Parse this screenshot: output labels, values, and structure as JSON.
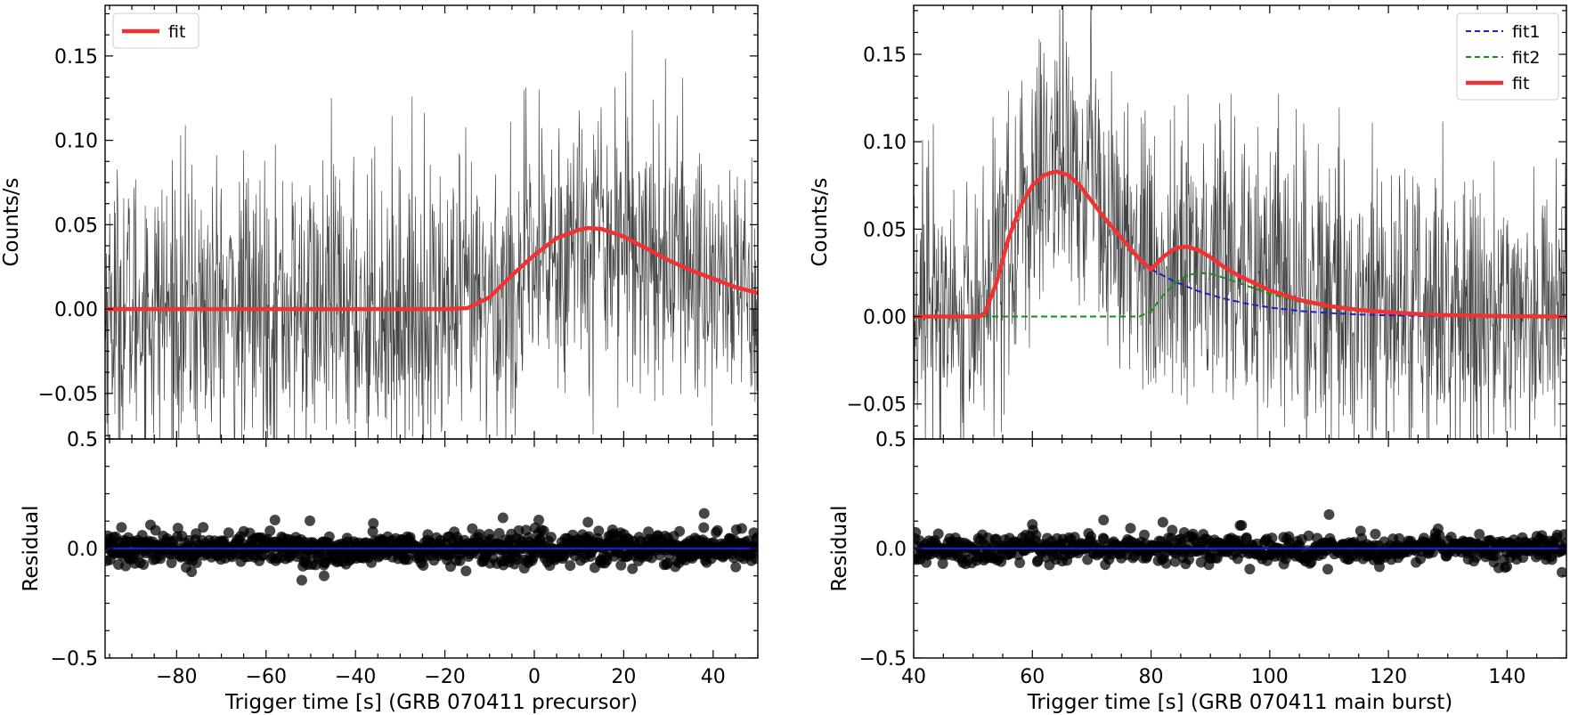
{
  "chart_data": [
    {
      "type": "line",
      "panel": "left-top",
      "title": "",
      "xlabel": "Trigger time [s] (GRB 070411 precursor)",
      "ylabel": "Counts/s",
      "xlim": [
        -96,
        50
      ],
      "ylim": [
        -0.077,
        0.18
      ],
      "xticks": [
        -80,
        -60,
        -40,
        -20,
        0,
        20,
        40
      ],
      "xtick_labels": [
        "−80",
        "−60",
        "−40",
        "−20",
        "0",
        "20",
        "40"
      ],
      "yticks": [
        -0.05,
        0.0,
        0.05,
        0.1,
        0.15
      ],
      "ytick_labels": [
        "−0.05",
        "0.00",
        "0.05",
        "0.10",
        "0.15"
      ],
      "grid": false,
      "legend": {
        "placement": "top-left",
        "entries": [
          {
            "label": "fit",
            "color": "#f03232",
            "style": "solid"
          }
        ]
      },
      "series": [
        {
          "name": "light curve",
          "kind": "noisy-data",
          "color": "#222222",
          "x_range": [
            -96,
            50
          ],
          "noise_std": 0.042,
          "envelope": {
            "x": [
              -96,
              -15,
              -5,
              5,
              12,
              20,
              30,
              40,
              50
            ],
            "y": [
              0,
              0,
              0.01,
              0.035,
              0.048,
              0.045,
              0.03,
              0.018,
              0.01
            ]
          }
        },
        {
          "name": "fit",
          "kind": "model",
          "color": "#f03232",
          "x": [
            -96,
            -20,
            -15,
            -10,
            -5,
            0,
            5,
            10,
            12,
            15,
            20,
            25,
            30,
            35,
            40,
            45,
            50
          ],
          "y": [
            0,
            0,
            0.0005,
            0.007,
            0.02,
            0.032,
            0.042,
            0.047,
            0.048,
            0.0475,
            0.043,
            0.036,
            0.029,
            0.023,
            0.018,
            0.013,
            0.0095
          ]
        }
      ]
    },
    {
      "type": "scatter",
      "panel": "left-bottom",
      "xlabel": "Trigger time [s] (GRB 070411 precursor)",
      "ylabel": "Residual",
      "xlim": [
        -96,
        50
      ],
      "ylim": [
        -0.5,
        0.5
      ],
      "yticks": [
        -0.5,
        0.0,
        0.5
      ],
      "ytick_labels": [
        "−0.5",
        "0.0",
        "0.5"
      ],
      "series": [
        {
          "name": "residual",
          "color": "#000000",
          "x_range": [
            -96,
            50
          ],
          "spread": 0.035,
          "count": 900
        },
        {
          "name": "zero line",
          "color": "#1f1fd0",
          "x": [
            -96,
            50
          ],
          "y": [
            0,
            0
          ]
        }
      ],
      "outliers": {
        "x": [
          38,
          -52,
          -47,
          -7,
          1,
          12,
          -58,
          -36
        ],
        "y": [
          0.16,
          -0.145,
          -0.125,
          0.14,
          0.13,
          0.12,
          0.13,
          0.115
        ]
      }
    },
    {
      "type": "line",
      "panel": "right-top",
      "title": "",
      "xlabel": "Trigger time [s] (GRB 070411 main burst)",
      "ylabel": "Counts/s",
      "xlim": [
        40,
        150
      ],
      "ylim": [
        -0.07,
        0.178
      ],
      "xticks": [
        40,
        60,
        80,
        100,
        120,
        140
      ],
      "xtick_labels": [
        "40",
        "60",
        "80",
        "100",
        "120",
        "140"
      ],
      "yticks": [
        -0.05,
        0.0,
        0.05,
        0.1,
        0.15
      ],
      "ytick_labels": [
        "−0.05",
        "0.00",
        "0.05",
        "0.10",
        "0.15"
      ],
      "grid": false,
      "legend": {
        "placement": "top-right",
        "entries": [
          {
            "label": "fit1",
            "color": "#1f1fd0",
            "style": "dashed"
          },
          {
            "label": "fit2",
            "color": "#1c8a1c",
            "style": "dashed"
          },
          {
            "label": "fit",
            "color": "#f03232",
            "style": "solid"
          }
        ]
      },
      "series": [
        {
          "name": "light curve",
          "kind": "noisy-data",
          "color": "#222222",
          "x_range": [
            40,
            150
          ],
          "noise_std": 0.04,
          "envelope": {
            "x": [
              40,
              50,
              55,
              60,
              64,
              70,
              75,
              80,
              85,
              90,
              100,
              110,
              120,
              150
            ],
            "y": [
              0,
              0,
              0.03,
              0.07,
              0.085,
              0.07,
              0.045,
              0.03,
              0.04,
              0.035,
              0.02,
              0.008,
              0.003,
              0
            ]
          }
        },
        {
          "name": "fit1",
          "kind": "model",
          "color": "#1f1fd0",
          "style": "dashed",
          "x": [
            80,
            84,
            88,
            92,
            96,
            100,
            105,
            110,
            115,
            120,
            125,
            130,
            140,
            150
          ],
          "y": [
            0.027,
            0.02,
            0.0145,
            0.0105,
            0.0075,
            0.0052,
            0.0032,
            0.002,
            0.0012,
            0.0007,
            0.0004,
            0.0002,
            0.0001,
            0.0
          ]
        },
        {
          "name": "fit2",
          "kind": "model",
          "color": "#1c8a1c",
          "style": "dashed",
          "x": [
            40,
            78,
            80,
            82,
            84,
            86,
            88,
            90,
            92,
            95,
            100,
            105,
            110,
            115,
            120,
            125,
            130,
            150
          ],
          "y": [
            0,
            0,
            0.003,
            0.012,
            0.019,
            0.0235,
            0.025,
            0.0245,
            0.0225,
            0.019,
            0.013,
            0.0085,
            0.0055,
            0.0035,
            0.002,
            0.001,
            0.0005,
            0
          ]
        },
        {
          "name": "fit",
          "kind": "model",
          "color": "#f03232",
          "style": "solid",
          "x": [
            40,
            51,
            52,
            54,
            56,
            58,
            60,
            62,
            64,
            66,
            68,
            70,
            72,
            75,
            78,
            80,
            82,
            84,
            86,
            88,
            90,
            92,
            95,
            100,
            105,
            110,
            115,
            120,
            125,
            130,
            140,
            150
          ],
          "y": [
            0,
            0,
            0.002,
            0.02,
            0.045,
            0.063,
            0.075,
            0.081,
            0.083,
            0.081,
            0.075,
            0.066,
            0.057,
            0.045,
            0.033,
            0.027,
            0.034,
            0.039,
            0.04,
            0.038,
            0.034,
            0.029,
            0.023,
            0.015,
            0.0095,
            0.006,
            0.0038,
            0.0025,
            0.0015,
            0.0008,
            0.0002,
            0
          ]
        }
      ]
    },
    {
      "type": "scatter",
      "panel": "right-bottom",
      "xlabel": "Trigger time [s] (GRB 070411 main burst)",
      "ylabel": "Residual",
      "xlim": [
        40,
        150
      ],
      "ylim": [
        -0.5,
        0.5
      ],
      "yticks": [
        -0.5,
        0.0,
        0.5
      ],
      "ytick_labels": [
        "−0.5",
        "0.0",
        "0.5"
      ],
      "series": [
        {
          "name": "residual",
          "color": "#000000",
          "x_range": [
            40,
            150
          ],
          "spread": 0.033,
          "count": 700
        },
        {
          "name": "zero line",
          "color": "#1f1fd0",
          "x": [
            40,
            150
          ],
          "y": [
            0,
            0
          ]
        }
      ],
      "outliers": {
        "x": [
          110,
          72,
          82,
          60,
          95
        ],
        "y": [
          0.155,
          0.13,
          0.12,
          0.11,
          0.105
        ]
      }
    }
  ]
}
